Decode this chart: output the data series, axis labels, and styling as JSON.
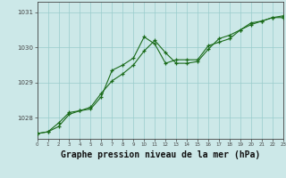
{
  "series1": {
    "x": [
      0,
      1,
      2,
      3,
      4,
      5,
      6,
      7,
      8,
      9,
      10,
      11,
      12,
      13,
      14,
      15,
      16,
      17,
      18,
      19,
      20,
      21,
      22,
      23
    ],
    "y": [
      1027.55,
      1027.6,
      1027.75,
      1028.1,
      1028.2,
      1028.25,
      1028.6,
      1029.35,
      1029.5,
      1029.7,
      1030.3,
      1030.1,
      1029.55,
      1029.65,
      1029.65,
      1029.65,
      1030.05,
      1030.15,
      1030.25,
      1030.5,
      1030.7,
      1030.75,
      1030.85,
      1030.9
    ]
  },
  "series2": {
    "x": [
      0,
      1,
      2,
      3,
      4,
      5,
      6,
      7,
      8,
      9,
      10,
      11,
      12,
      13,
      14,
      15,
      16,
      17,
      18,
      19,
      20,
      21,
      22,
      23
    ],
    "y": [
      1027.55,
      1027.6,
      1027.85,
      1028.15,
      1028.2,
      1028.3,
      1028.7,
      1029.05,
      1029.25,
      1029.5,
      1029.9,
      1030.2,
      1029.85,
      1029.55,
      1029.55,
      1029.6,
      1029.95,
      1030.25,
      1030.35,
      1030.5,
      1030.65,
      1030.75,
      1030.85,
      1030.85
    ]
  },
  "line_color": "#1a6b1a",
  "marker": "+",
  "bg_color": "#cce8e8",
  "grid_color": "#99cccc",
  "axis_color": "#444444",
  "ylabel_ticks": [
    1028,
    1029,
    1030,
    1031
  ],
  "xlabel_ticks": [
    0,
    1,
    2,
    3,
    4,
    5,
    6,
    7,
    8,
    9,
    10,
    11,
    12,
    13,
    14,
    15,
    16,
    17,
    18,
    19,
    20,
    21,
    22,
    23
  ],
  "ylim": [
    1027.4,
    1031.3
  ],
  "xlim": [
    0,
    23
  ],
  "xlabel": "Graphe pression niveau de la mer (hPa)",
  "xlabel_fontsize": 7.0
}
